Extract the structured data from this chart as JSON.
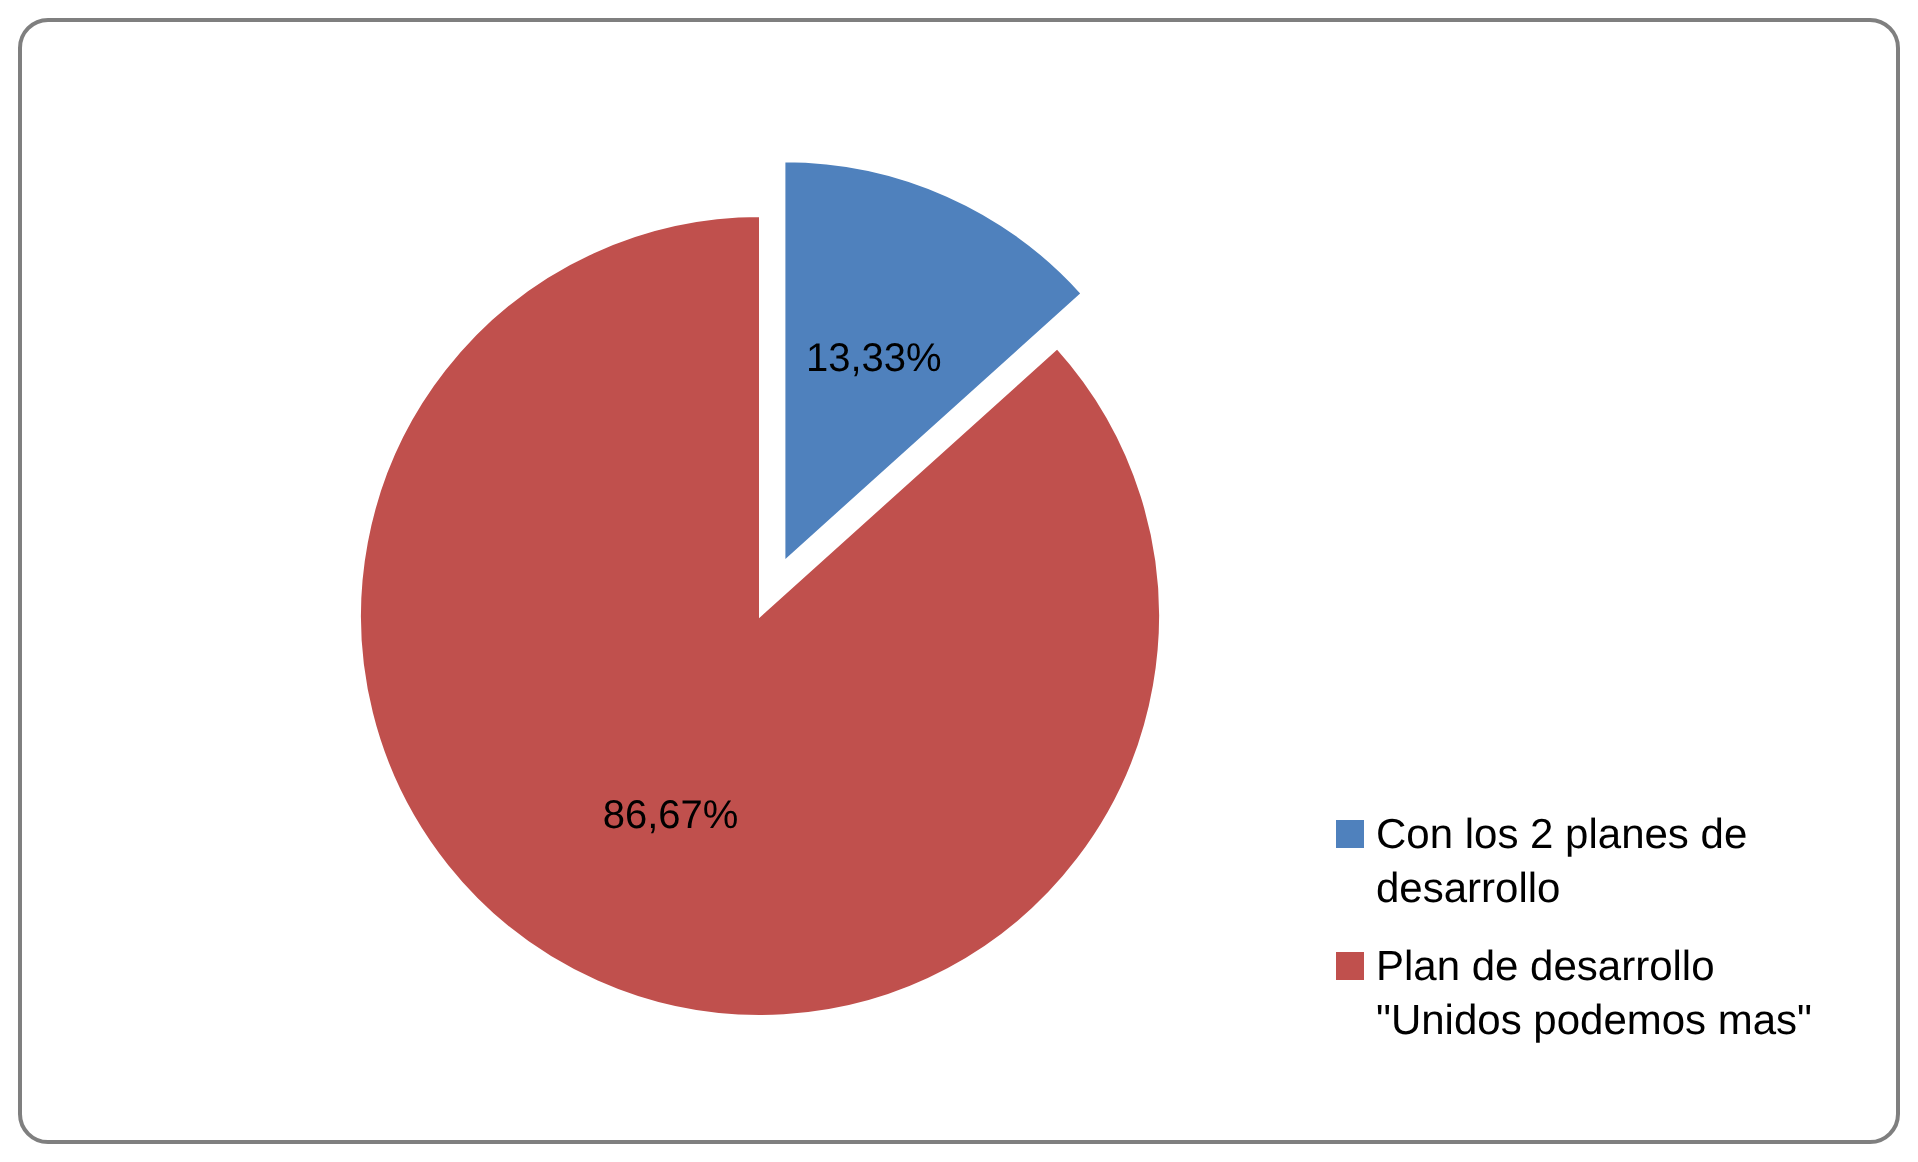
{
  "chart_data": {
    "type": "pie",
    "categories": [
      "Con los 2 planes de desarrollo",
      "Plan de desarrollo \"Unidos podemos mas\""
    ],
    "values": [
      13.33,
      86.67
    ],
    "colors": [
      "#4f81bd",
      "#c0504d"
    ],
    "value_labels": [
      "13,33%",
      "86,67%"
    ],
    "legend": "right"
  }
}
